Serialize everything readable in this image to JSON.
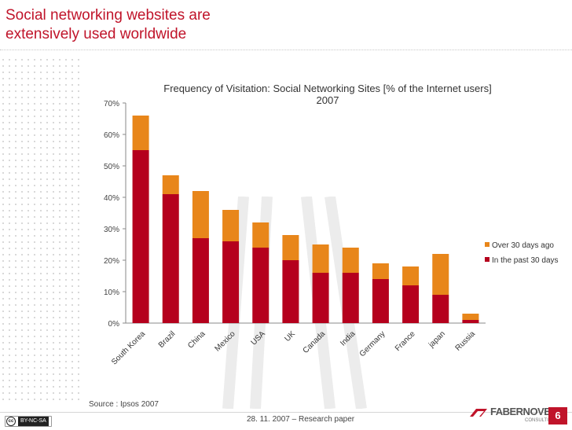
{
  "slide": {
    "title_line1": "Social networking websites are",
    "title_line2": "extensively used worldwide",
    "source": "Source : Ipsos 2007",
    "footer_date": "28. 11. 2007 – Research paper",
    "license": "BY-NC-SA",
    "logo_name": "FABERNOVEL",
    "logo_sub": "CONSULTING",
    "page_number": "6"
  },
  "chart_data": {
    "type": "bar",
    "stacked": true,
    "title_line1": "Frequency of Visitation: Social Networking Sites [% of the Internet users]",
    "title_line2": "2007",
    "categories": [
      "South Korea",
      "Brazil",
      "China",
      "Mexico",
      "USA",
      "UK",
      "Canada",
      "India",
      "Germany",
      "France",
      "japan",
      "Russia"
    ],
    "series": [
      {
        "name": "In the past 30 days",
        "color": "#b5001d",
        "values": [
          55,
          41,
          27,
          26,
          24,
          20,
          16,
          16,
          14,
          12,
          9,
          1
        ]
      },
      {
        "name": "Over 30 days ago",
        "color": "#e8861a",
        "values": [
          11,
          6,
          15,
          10,
          8,
          8,
          9,
          8,
          5,
          6,
          13,
          2
        ]
      }
    ],
    "y_ticks": [
      "0%",
      "10%",
      "20%",
      "30%",
      "40%",
      "50%",
      "60%",
      "70%"
    ],
    "ylim": [
      0,
      70
    ],
    "ylabel": "",
    "xlabel": "",
    "grid": false,
    "legend_position": "right",
    "legend_order": [
      "Over 30 days ago",
      "In the past 30 days"
    ]
  }
}
